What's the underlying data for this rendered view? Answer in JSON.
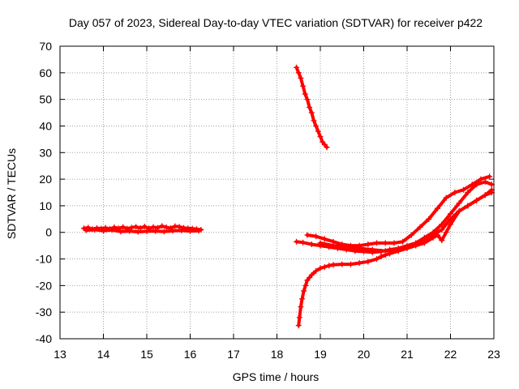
{
  "chart_data": {
    "type": "scatter",
    "title": "Day 057 of 2023, Sidereal Day-to-day VTEC variation (SDTVAR) for receiver p422",
    "xlabel": "GPS time / hours",
    "ylabel": "SDTVAR / TECUs",
    "xlim": [
      13,
      23
    ],
    "ylim": [
      -40,
      70
    ],
    "x_ticks": [
      "13",
      "14",
      "15",
      "16",
      "17",
      "18",
      "19",
      "20",
      "21",
      "22",
      "23"
    ],
    "y_ticks": [
      "-40",
      "-30",
      "-20",
      "-10",
      "0",
      "10",
      "20",
      "30",
      "40",
      "50",
      "60",
      "70"
    ],
    "grid": true,
    "marker": "+",
    "color": "#ff0000",
    "series": [
      {
        "x": [
          13.55,
          13.65,
          13.75,
          13.85,
          13.95,
          14.05,
          14.15,
          14.25,
          14.35,
          14.45,
          14.55,
          14.65,
          14.75,
          14.85,
          14.95,
          15.05,
          15.15,
          15.25,
          15.35,
          15.45,
          15.55,
          15.65,
          15.75,
          15.85,
          15.95,
          16.05,
          16.15,
          16.25
        ],
        "y": [
          1.5,
          1.8,
          1.2,
          1.6,
          1.4,
          1.7,
          1.3,
          1.9,
          1.5,
          2.0,
          1.4,
          1.8,
          2.1,
          1.6,
          2.2,
          1.5,
          2.0,
          1.7,
          2.4,
          1.9,
          1.6,
          2.3,
          2.1,
          1.7,
          1.5,
          1.4,
          1.2,
          1.0
        ]
      },
      {
        "x": [
          13.6,
          13.8,
          14.0,
          14.2,
          14.4,
          14.6,
          14.8,
          15.0,
          15.2,
          15.4,
          15.6,
          15.8,
          16.0,
          16.2
        ],
        "y": [
          0.8,
          1.0,
          0.6,
          0.9,
          0.3,
          0.5,
          0.2,
          0.4,
          0.5,
          0.3,
          0.6,
          0.7,
          0.5,
          0.6
        ]
      },
      {
        "x": [
          18.45,
          18.5,
          18.55,
          18.6,
          18.65,
          18.7,
          18.75,
          18.8,
          18.85,
          18.9,
          18.95,
          19.0,
          19.05,
          19.1,
          19.15
        ],
        "y": [
          62,
          60,
          58,
          55,
          52,
          50,
          47,
          45,
          42,
          40,
          38,
          36,
          34,
          33,
          32
        ]
      },
      {
        "x": [
          18.5,
          18.52,
          18.55,
          18.58,
          18.62,
          18.66,
          18.7,
          18.75,
          18.8,
          18.9,
          19.0,
          19.1,
          19.2,
          19.3,
          19.5,
          19.7,
          19.9,
          20.1,
          20.3,
          20.5
        ],
        "y": [
          -35,
          -32,
          -28,
          -25,
          -22,
          -20,
          -18,
          -17,
          -16,
          -14.5,
          -13.5,
          -13,
          -12.5,
          -12.2,
          -12,
          -12,
          -11.5,
          -11,
          -10,
          -8.5
        ]
      },
      {
        "x": [
          18.45,
          18.6,
          18.8,
          19.0,
          19.2,
          19.4,
          19.6,
          19.8,
          20.0,
          20.2,
          20.4,
          20.6,
          20.8,
          21.0,
          21.2,
          21.4,
          21.6,
          21.8,
          22.0,
          22.2,
          22.4,
          22.6,
          22.8,
          22.95
        ],
        "y": [
          -3.5,
          -3.8,
          -4.5,
          -5,
          -5.5,
          -6,
          -6.5,
          -7,
          -7.2,
          -7.5,
          -7.2,
          -6.5,
          -6,
          -5,
          -4,
          -2,
          0,
          3,
          7,
          11,
          15,
          18,
          19,
          18
        ]
      },
      {
        "x": [
          18.7,
          18.9,
          19.1,
          19.3,
          19.5,
          19.7,
          19.9,
          20.1,
          20.3,
          20.5,
          20.7,
          20.9,
          21.1,
          21.3,
          21.5,
          21.7,
          21.9,
          22.1,
          22.3,
          22.5,
          22.7,
          22.9
        ],
        "y": [
          -1,
          -1.5,
          -2.5,
          -3.5,
          -4.5,
          -5,
          -5,
          -4.5,
          -4,
          -4,
          -4,
          -3.5,
          -1,
          2,
          5,
          9,
          13,
          15,
          16,
          18,
          20,
          21
        ]
      },
      {
        "x": [
          19.0,
          19.3,
          19.6,
          19.9,
          20.2,
          20.5,
          20.8,
          21.0,
          21.2,
          21.4,
          21.6,
          21.8,
          22.0,
          22.2,
          22.4,
          22.6,
          22.8,
          22.95
        ],
        "y": [
          -4,
          -5,
          -5.5,
          -6,
          -6.5,
          -7,
          -6.5,
          -5.5,
          -4.5,
          -3,
          -1,
          1,
          5,
          8,
          10,
          12,
          14,
          15
        ]
      },
      {
        "x": [
          20.4,
          20.6,
          20.8,
          21.0,
          21.2,
          21.4,
          21.6,
          21.7,
          21.8,
          21.9,
          22.0,
          22.2,
          22.4,
          22.6,
          22.8,
          22.95
        ],
        "y": [
          -9,
          -8,
          -7,
          -6,
          -5,
          -4,
          -2,
          -1,
          -3,
          0,
          3,
          8,
          10,
          12,
          14,
          16
        ]
      }
    ]
  }
}
